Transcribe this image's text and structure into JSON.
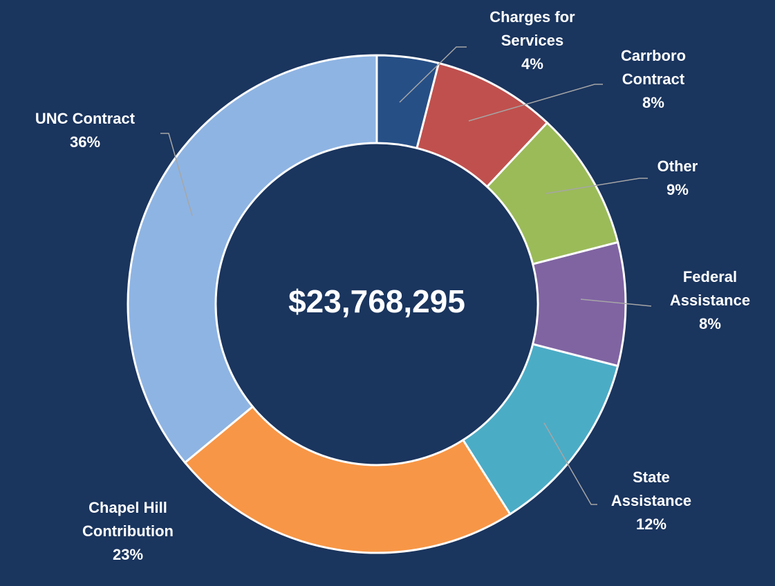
{
  "chart_data": {
    "type": "donut",
    "center_label": "$23,768,295",
    "categories": [
      "Charges for Services",
      "Carrboro Contract",
      "Other",
      "Federal Assistance",
      "State Assistance",
      "Chapel Hill Contribution",
      "UNC Contract"
    ],
    "values": [
      4,
      8,
      9,
      8,
      12,
      23,
      36
    ],
    "value_labels": [
      "4%",
      "8%",
      "9%",
      "8%",
      "12%",
      "23%",
      "36%"
    ],
    "colors": [
      "#264f86",
      "#c0504d",
      "#9bbb59",
      "#8064a2",
      "#4bacc6",
      "#f79646",
      "#8eb4e3"
    ]
  }
}
